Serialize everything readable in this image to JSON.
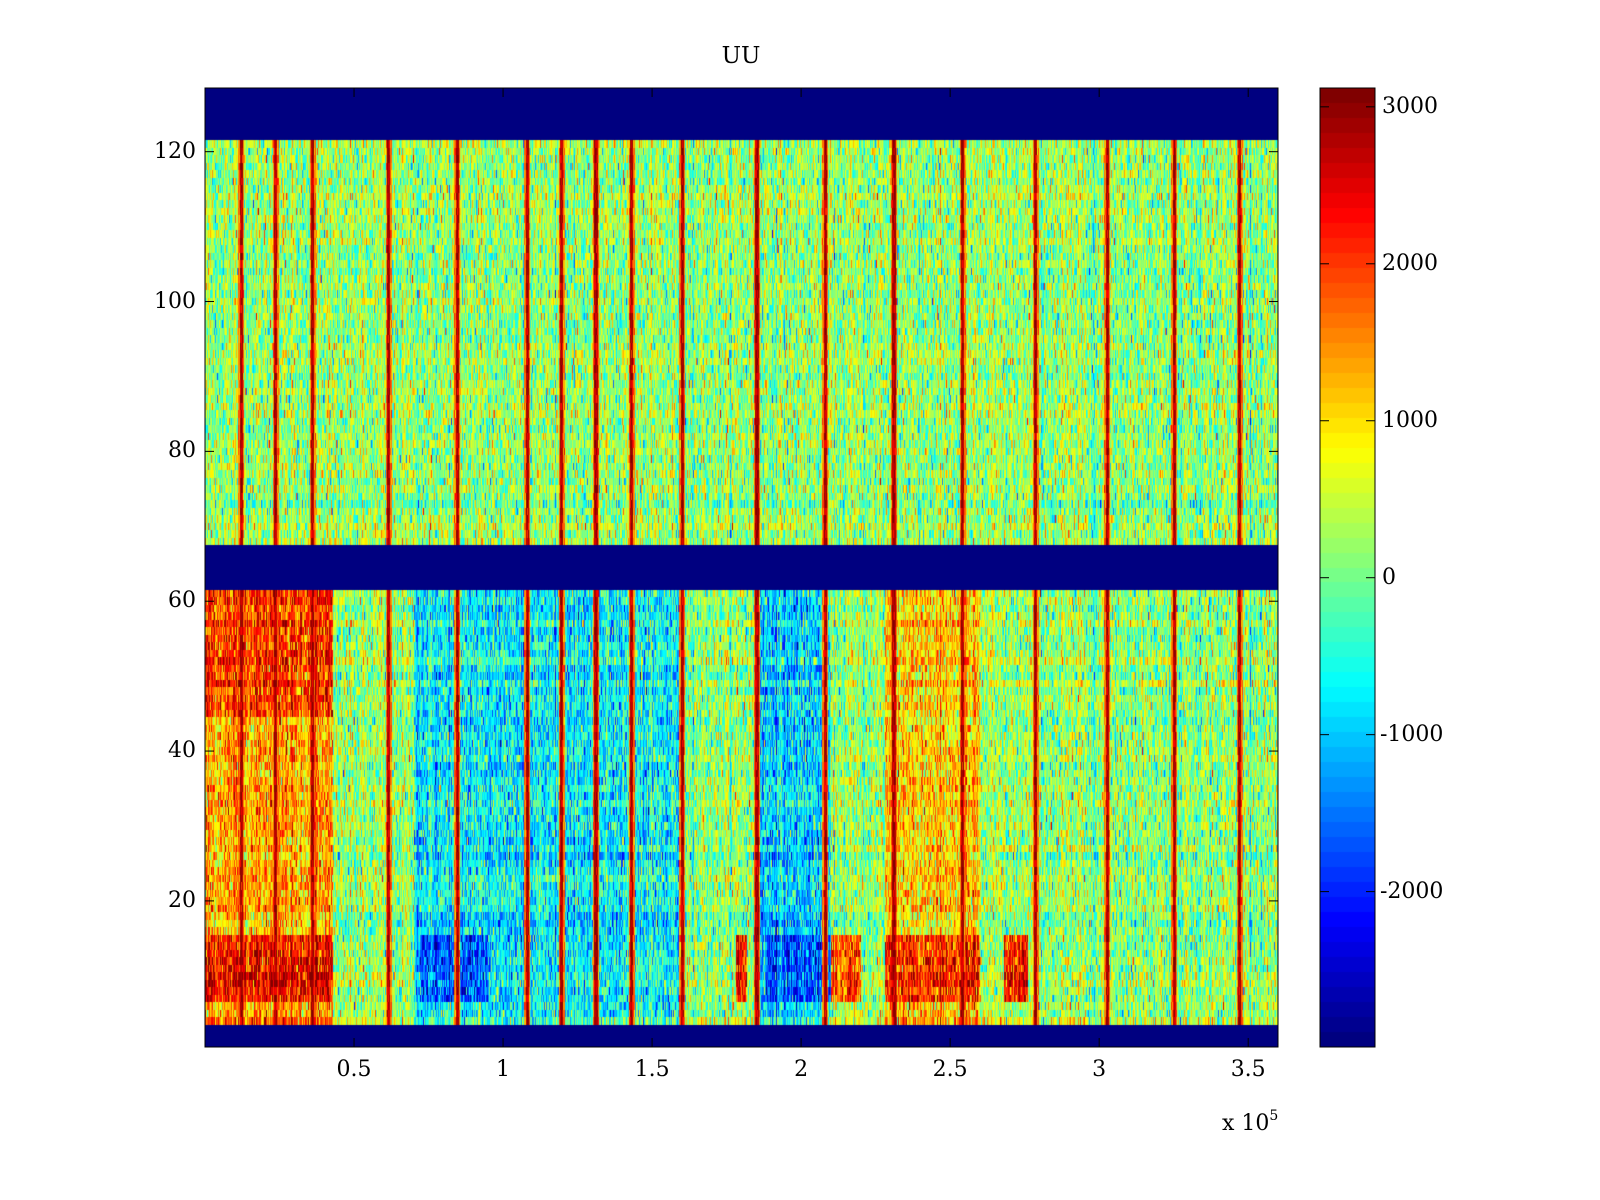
{
  "chart_data": {
    "type": "heatmap",
    "title": "UU",
    "xlabel": "",
    "ylabel": "",
    "x_exponent_label": "x 10",
    "x_exponent_power": "5",
    "xlim": [
      0,
      360000
    ],
    "ylim": [
      0.5,
      128.5
    ],
    "x_ticks": [
      50000,
      100000,
      150000,
      200000,
      250000,
      300000,
      350000
    ],
    "x_tick_labels": [
      "0.5",
      "1",
      "1.5",
      "2",
      "2.5",
      "3",
      "3.5"
    ],
    "y_ticks": [
      20,
      40,
      60,
      80,
      100,
      120
    ],
    "y_tick_labels": [
      "20",
      "40",
      "60",
      "80",
      "100",
      "120"
    ],
    "colormap": "jet",
    "clim": [
      -2990,
      3120
    ],
    "colorbar_ticks": [
      3000,
      2000,
      1000,
      0,
      -1000,
      -2000
    ],
    "colorbar_tick_labels": [
      "3000",
      "2000",
      "1000",
      "0",
      "-1000",
      "-2000"
    ],
    "colorbar_location": "right",
    "rows": 128,
    "min_value_rows": [
      [
        1,
        3
      ],
      [
        62,
        67
      ],
      [
        122,
        128
      ]
    ],
    "background_mean": 200,
    "noise_sd": 550,
    "spike_x": [
      12000,
      23500,
      36000,
      61500,
      84500,
      108000,
      119500,
      131000,
      143000,
      160000,
      185000,
      208000,
      231000,
      254000,
      278500,
      302500,
      325000,
      347000
    ],
    "spike_value": 2800,
    "regions": [
      {
        "x": [
          0,
          43000
        ],
        "rows": [
          4,
          61
        ],
        "mean": 1300
      },
      {
        "x": [
          0,
          43000
        ],
        "rows": [
          7,
          15
        ],
        "mean": 2300
      },
      {
        "x": [
          0,
          43000
        ],
        "rows": [
          45,
          61
        ],
        "mean": 2000
      },
      {
        "x": [
          70000,
          160000
        ],
        "rows": [
          4,
          61
        ],
        "mean": -700
      },
      {
        "x": [
          72000,
          95000
        ],
        "rows": [
          7,
          15
        ],
        "mean": -1700
      },
      {
        "x": [
          185000,
          210000
        ],
        "rows": [
          4,
          61
        ],
        "mean": -900
      },
      {
        "x": [
          188000,
          210000
        ],
        "rows": [
          7,
          15
        ],
        "mean": -1700
      },
      {
        "x": [
          228000,
          260000
        ],
        "rows": [
          4,
          61
        ],
        "mean": 1100
      },
      {
        "x": [
          228000,
          260000
        ],
        "rows": [
          7,
          15
        ],
        "mean": 2100
      },
      {
        "x": [
          210000,
          220000
        ],
        "rows": [
          7,
          15
        ],
        "mean": 1800
      },
      {
        "x": [
          178000,
          182000
        ],
        "rows": [
          7,
          15
        ],
        "mean": 2200
      },
      {
        "x": [
          268000,
          276000
        ],
        "rows": [
          7,
          15
        ],
        "mean": 2200
      }
    ]
  }
}
